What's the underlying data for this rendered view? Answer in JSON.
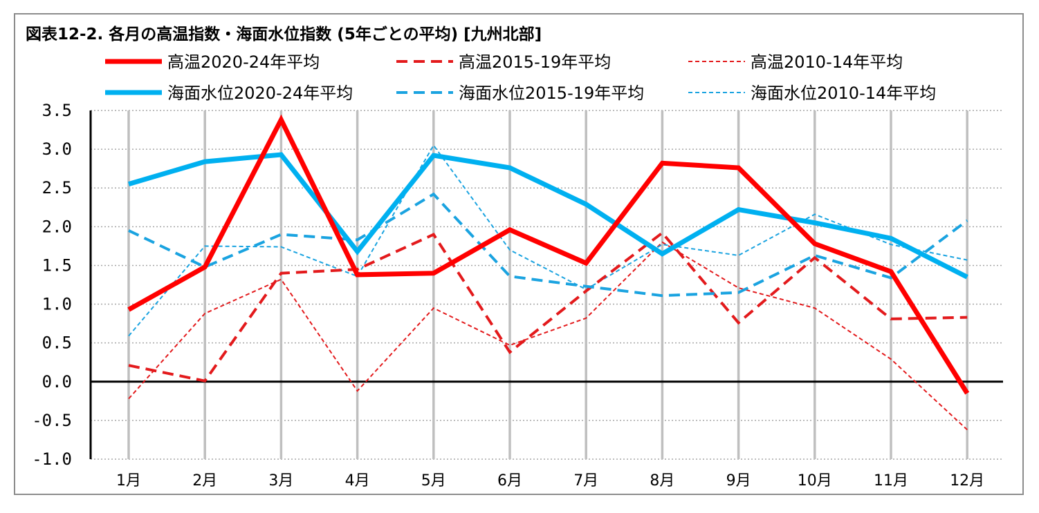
{
  "chart_data": {
    "type": "line",
    "title": "図表12-2. 各月の高温指数・海面水位指数 (5年ごとの平均) [九州北部]",
    "categories": [
      "1月",
      "2月",
      "3月",
      "4月",
      "5月",
      "6月",
      "7月",
      "8月",
      "9月",
      "10月",
      "11月",
      "12月"
    ],
    "ylim": [
      -1.0,
      3.5
    ],
    "yticks": [
      "3.5",
      "3.0",
      "2.5",
      "2.0",
      "1.5",
      "1.0",
      "0.5",
      "0.0",
      "-0.5",
      "-1.0"
    ],
    "grid": true,
    "legend_position": "top",
    "series": [
      {
        "name": "高温2020-24年平均",
        "color": "#ff0000",
        "style": "solid-thick",
        "values": [
          0.93,
          1.48,
          3.38,
          1.38,
          1.4,
          1.96,
          1.53,
          2.82,
          2.76,
          1.78,
          1.42,
          -0.15
        ]
      },
      {
        "name": "高温2015-19年平均",
        "color": "#e31a1c",
        "style": "dash-medium",
        "values": [
          0.21,
          0.01,
          1.4,
          1.45,
          1.9,
          0.38,
          1.17,
          1.92,
          0.76,
          1.6,
          0.81,
          0.83
        ]
      },
      {
        "name": "高温2010-14年平均",
        "color": "#e31a1c",
        "style": "dash-thin",
        "values": [
          -0.22,
          0.88,
          1.32,
          -0.12,
          0.95,
          0.47,
          0.82,
          1.8,
          1.21,
          0.95,
          0.29,
          -0.62
        ]
      },
      {
        "name": "海面水位2020-24年平均",
        "color": "#00b0f0",
        "style": "solid-thick",
        "values": [
          2.55,
          2.84,
          2.93,
          1.68,
          2.92,
          2.76,
          2.29,
          1.65,
          2.22,
          2.05,
          1.85,
          1.35
        ]
      },
      {
        "name": "海面水位2015-19年平均",
        "color": "#1aa3e0",
        "style": "dash-medium",
        "values": [
          1.95,
          1.48,
          1.9,
          1.83,
          2.42,
          1.36,
          1.23,
          1.11,
          1.15,
          1.63,
          1.34,
          2.08
        ]
      },
      {
        "name": "海面水位2010-14年平均",
        "color": "#1aa3e0",
        "style": "dash-thin",
        "values": [
          0.59,
          1.75,
          1.74,
          1.36,
          3.05,
          1.7,
          1.19,
          1.77,
          1.63,
          2.16,
          1.77,
          1.57
        ]
      }
    ]
  }
}
